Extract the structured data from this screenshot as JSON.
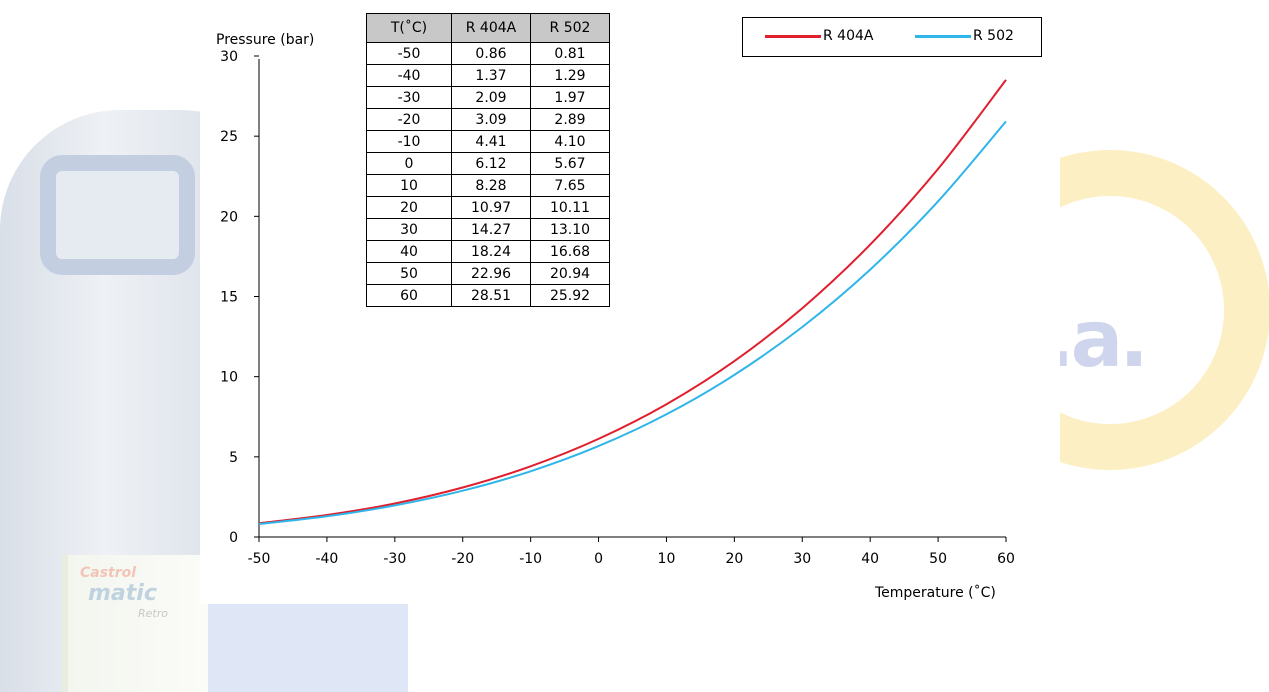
{
  "colors": {
    "r404a": "#e01e2d",
    "r502": "#2eb5ea"
  },
  "table": {
    "headers": [
      "T(˚C)",
      "R 404A",
      "R 502"
    ],
    "rows": [
      [
        "-50",
        "0.86",
        "0.81"
      ],
      [
        "-40",
        "1.37",
        "1.29"
      ],
      [
        "-30",
        "2.09",
        "1.97"
      ],
      [
        "-20",
        "3.09",
        "2.89"
      ],
      [
        "-10",
        "4.41",
        "4.10"
      ],
      [
        "0",
        "6.12",
        "5.67"
      ],
      [
        "10",
        "8.28",
        "7.65"
      ],
      [
        "20",
        "10.97",
        "10.11"
      ],
      [
        "30",
        "14.27",
        "13.10"
      ],
      [
        "40",
        "18.24",
        "16.68"
      ],
      [
        "50",
        "22.96",
        "20.94"
      ],
      [
        "60",
        "28.51",
        "25.92"
      ]
    ]
  },
  "chart_data": {
    "type": "line",
    "xlabel": "Temperature (˚C)",
    "ylabel": "Pressure (bar)",
    "xlim": [
      -50,
      60
    ],
    "ylim": [
      0,
      30
    ],
    "x_ticks": [
      -50,
      -40,
      -30,
      -20,
      -10,
      0,
      10,
      20,
      30,
      40,
      50,
      60
    ],
    "y_ticks": [
      0,
      5,
      10,
      15,
      20,
      25,
      30
    ],
    "legend_position": "top-right",
    "grid": false,
    "x": [
      -50,
      -40,
      -30,
      -20,
      -10,
      0,
      10,
      20,
      30,
      40,
      50,
      60
    ],
    "series": [
      {
        "name": "R 404A",
        "values": [
          0.86,
          1.37,
          2.09,
          3.09,
          4.41,
          6.12,
          8.28,
          10.97,
          14.27,
          18.24,
          22.96,
          28.51
        ]
      },
      {
        "name": "R 502",
        "values": [
          0.81,
          1.29,
          1.97,
          2.89,
          4.1,
          5.67,
          7.65,
          10.11,
          13.1,
          16.68,
          20.94,
          25.92
        ]
      }
    ]
  }
}
